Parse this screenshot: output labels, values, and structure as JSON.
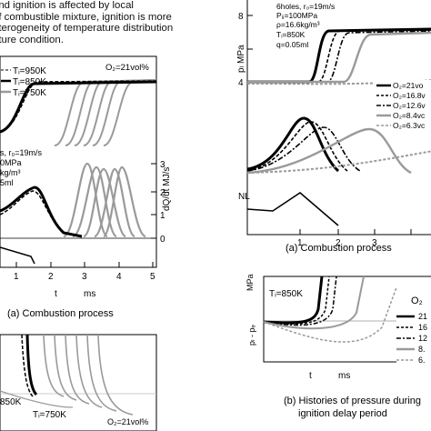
{
  "paragraph": {
    "lines": [
      "and ignition is affected by local",
      "of combustible mixture, ignition is more",
      "eterogeneity of temperature distribution",
      "ature condition."
    ]
  },
  "figure_left": {
    "legend_temps": [
      "Tᵢ=950K",
      "Tᵢ=850K",
      "Tᵢ=750K"
    ],
    "o2_label": "O₂=21vol%",
    "params": [
      "s, r₀=19m/s",
      "0MPa",
      "kg/m³",
      "5ml"
    ],
    "ylabel": "dQ/dt  MJ/s",
    "yticks": [
      "3",
      "2",
      "1",
      "0"
    ],
    "xticks": [
      "1",
      "2",
      "3",
      "4",
      "5"
    ],
    "xlabel_t": "t",
    "xlabel_ms": "ms",
    "caption": "(a) Combustion process",
    "bottom_temps": [
      "850K",
      "Tᵢ=750K"
    ],
    "bottom_o2": "O₂=21vol%"
  },
  "figure_right": {
    "params": [
      "6holes, r₀=19m/s",
      "Pᵢⱼ=100MPa",
      "ρ=16.6kg/m³",
      "Tᵢ=850K",
      "q=0.05ml"
    ],
    "yticks": [
      "8",
      "4"
    ],
    "ylabel": "pₗ  MPa",
    "legend": [
      "O₂=21vo",
      "O₂=16.8v",
      "O₂=12.6v",
      "O₂=8.4vc",
      "O₂=6.3vc"
    ],
    "nl_label": "NL",
    "xticks": [
      "1",
      "2",
      "3"
    ],
    "caption": "(a) Combustion process",
    "lower_temp": "Tᵢ=850K",
    "lower_ylabel_top": "MPa",
    "lower_ylabel": "pₗ - pₑ",
    "lower_xlabel_t": "t",
    "lower_xlabel_ms": "ms",
    "o2_short": "O₂",
    "lower_legend": [
      "21",
      "16",
      "12",
      "8.",
      "6."
    ],
    "caption2_line1": "(b) Histories of pressure during",
    "caption2_line2": "ignition delay period"
  }
}
